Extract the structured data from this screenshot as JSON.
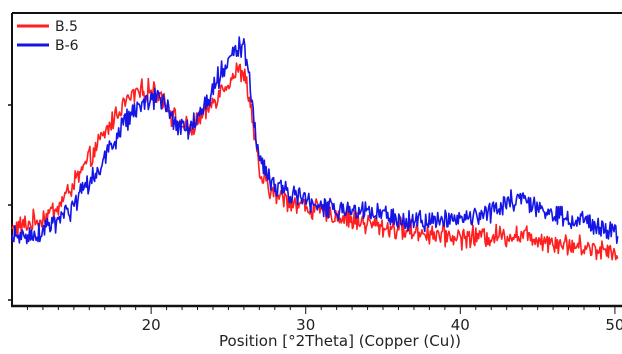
{
  "chart_data": {
    "type": "line",
    "xlabel": "Position [°2Theta] (Copper (Cu))",
    "ylabel": "",
    "title": "",
    "xlim": [
      11,
      50.2
    ],
    "x_ticks": [
      20,
      30,
      40,
      50
    ],
    "x_tick_labels": [
      "20",
      "30",
      "40",
      "50"
    ],
    "ylim": [
      0,
      1
    ],
    "grid": false,
    "legend_position": "top-left",
    "series": [
      {
        "name": "B.5",
        "color": "#ff1f1f",
        "noise": 0.03,
        "points": [
          [
            11,
            0.26
          ],
          [
            12,
            0.28
          ],
          [
            13,
            0.3
          ],
          [
            14,
            0.34
          ],
          [
            15,
            0.42
          ],
          [
            16,
            0.5
          ],
          [
            17,
            0.59
          ],
          [
            18,
            0.68
          ],
          [
            19,
            0.73
          ],
          [
            20,
            0.74
          ],
          [
            20.7,
            0.72
          ],
          [
            21.5,
            0.64
          ],
          [
            22.5,
            0.6
          ],
          [
            23.5,
            0.66
          ],
          [
            24.5,
            0.74
          ],
          [
            25.5,
            0.8
          ],
          [
            26,
            0.8
          ],
          [
            26.4,
            0.7
          ],
          [
            27,
            0.45
          ],
          [
            28,
            0.38
          ],
          [
            30,
            0.34
          ],
          [
            32,
            0.31
          ],
          [
            35,
            0.27
          ],
          [
            38,
            0.25
          ],
          [
            40,
            0.235
          ],
          [
            42,
            0.24
          ],
          [
            44,
            0.245
          ],
          [
            46,
            0.22
          ],
          [
            48,
            0.2
          ],
          [
            50.2,
            0.19
          ]
        ]
      },
      {
        "name": "B-6",
        "color": "#1515e6",
        "noise": 0.03,
        "points": [
          [
            11,
            0.23
          ],
          [
            12,
            0.24
          ],
          [
            13,
            0.26
          ],
          [
            14,
            0.29
          ],
          [
            15,
            0.34
          ],
          [
            16,
            0.42
          ],
          [
            17,
            0.51
          ],
          [
            18,
            0.6
          ],
          [
            19,
            0.68
          ],
          [
            20,
            0.7
          ],
          [
            20.7,
            0.71
          ],
          [
            21.5,
            0.63
          ],
          [
            22.5,
            0.61
          ],
          [
            23.5,
            0.68
          ],
          [
            24.5,
            0.8
          ],
          [
            25.5,
            0.88
          ],
          [
            26,
            0.88
          ],
          [
            26.4,
            0.75
          ],
          [
            27,
            0.5
          ],
          [
            28,
            0.41
          ],
          [
            30,
            0.36
          ],
          [
            32,
            0.33
          ],
          [
            35,
            0.31
          ],
          [
            38,
            0.29
          ],
          [
            40,
            0.3
          ],
          [
            42,
            0.32
          ],
          [
            43.8,
            0.37
          ],
          [
            45,
            0.33
          ],
          [
            47,
            0.3
          ],
          [
            49,
            0.27
          ],
          [
            50.2,
            0.25
          ]
        ]
      }
    ]
  }
}
